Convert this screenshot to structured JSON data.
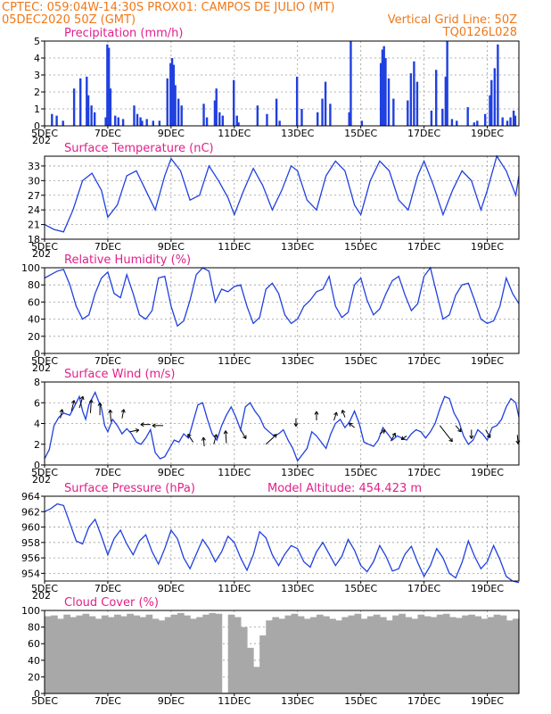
{
  "header": {
    "line1_left": "CPTEC:   059:04W-14:30S   PROX01: CAMPOS DE JULIO (MT)",
    "line2_left": "05DEC2020 50Z (GMT)",
    "line2_right": "Vertical Grid Line: 50Z",
    "line3_right": "TQ0126L028",
    "color": "#f07818"
  },
  "colors": {
    "title": "#e0208a",
    "series": "#2040e0",
    "cloud": "#a8a8a8",
    "grid": "#9a9a9a"
  },
  "x_axis": {
    "day_start": 5,
    "day_end": 20,
    "ticks": [
      {
        "day": 5,
        "label": "5DEC"
      },
      {
        "day": 7,
        "label": "7DEC"
      },
      {
        "day": 9,
        "label": "9DEC"
      },
      {
        "day": 11,
        "label": "11DEC"
      },
      {
        "day": 13,
        "label": "13DEC"
      },
      {
        "day": 15,
        "label": "15DEC"
      },
      {
        "day": 17,
        "label": "17DEC"
      },
      {
        "day": 19,
        "label": "19DEC"
      }
    ],
    "overlap_text": "202"
  },
  "chart_data": [
    {
      "type": "bar",
      "title": "Precipitation (mm/h)",
      "ylim": [
        0,
        5
      ],
      "yticks": [
        0,
        1,
        2,
        3,
        4,
        5
      ],
      "x": [
        5.2,
        5.35,
        5.55,
        5.9,
        6.1,
        6.3,
        6.35,
        6.45,
        6.55,
        6.9,
        6.95,
        7.0,
        7.05,
        7.2,
        7.3,
        7.45,
        7.8,
        7.9,
        8.0,
        8.05,
        8.2,
        8.4,
        8.6,
        8.85,
        8.95,
        9.0,
        9.05,
        9.1,
        9.2,
        9.3,
        10.0,
        10.1,
        10.35,
        10.4,
        10.5,
        10.6,
        10.95,
        11.05,
        11.1,
        11.7,
        12.0,
        12.3,
        12.4,
        12.95,
        13.1,
        13.6,
        13.75,
        13.85,
        14.0,
        14.6,
        14.65,
        15.0,
        15.6,
        15.65,
        15.7,
        15.75,
        15.85,
        16.0,
        16.45,
        16.55,
        16.65,
        16.75,
        17.2,
        17.35,
        17.55,
        17.65,
        17.7,
        17.85,
        18.0,
        18.35,
        18.55,
        18.65,
        18.9,
        19.05,
        19.1,
        19.2,
        19.3,
        19.45,
        19.6,
        19.7,
        19.8,
        19.85
      ],
      "values": [
        0.7,
        0.6,
        0.3,
        2.2,
        2.8,
        2.9,
        1.8,
        1.2,
        0.8,
        0.5,
        4.8,
        4.6,
        2.2,
        0.6,
        0.5,
        0.4,
        1.2,
        0.7,
        0.5,
        0.3,
        0.4,
        0.3,
        0.3,
        2.8,
        3.7,
        4.0,
        3.6,
        2.4,
        1.6,
        1.2,
        1.3,
        0.5,
        1.5,
        2.2,
        0.8,
        0.6,
        2.7,
        0.6,
        0.2,
        1.2,
        0.7,
        1.6,
        0.3,
        2.9,
        1.0,
        0.8,
        1.6,
        2.6,
        1.3,
        0.8,
        5.0,
        0.3,
        3.7,
        4.5,
        4.7,
        4.0,
        2.8,
        1.6,
        1.5,
        3.1,
        3.8,
        2.6,
        0.9,
        3.3,
        1.0,
        2.9,
        5.0,
        0.4,
        0.3,
        1.1,
        0.2,
        0.3,
        0.7,
        1.8,
        2.7,
        3.4,
        4.8,
        0.5,
        0.3,
        0.5,
        0.9,
        0.6
      ]
    },
    {
      "type": "line",
      "title": "Surface Temperature (nC)",
      "ylim": [
        18,
        35
      ],
      "yticks": [
        18,
        21,
        24,
        27,
        30,
        33
      ],
      "x": [
        5.0,
        5.3,
        5.6,
        5.9,
        6.2,
        6.5,
        6.8,
        7.0,
        7.3,
        7.6,
        7.9,
        8.2,
        8.5,
        8.8,
        9.0,
        9.3,
        9.6,
        9.9,
        10.2,
        10.5,
        10.8,
        11.0,
        11.3,
        11.6,
        11.9,
        12.2,
        12.5,
        12.8,
        13.0,
        13.3,
        13.6,
        13.9,
        14.2,
        14.5,
        14.8,
        15.0,
        15.3,
        15.6,
        15.9,
        16.2,
        16.5,
        16.8,
        17.0,
        17.3,
        17.6,
        17.9,
        18.2,
        18.5,
        18.8,
        19.0,
        19.3,
        19.6,
        19.9,
        20.0
      ],
      "values": [
        21,
        20,
        19.5,
        24,
        30,
        31.5,
        28,
        22.5,
        25,
        31,
        32,
        28,
        24,
        31,
        34.5,
        32,
        26,
        27,
        33,
        30,
        26.5,
        23,
        28,
        32.5,
        29,
        24,
        28,
        33,
        32,
        26,
        24,
        31,
        34,
        32,
        25,
        23,
        30,
        34,
        32,
        26,
        24,
        31,
        34,
        29,
        23,
        28,
        32,
        30,
        24,
        28,
        35,
        32,
        27,
        31
      ]
    },
    {
      "type": "line",
      "title": "Relative Humidity (%)",
      "ylim": [
        0,
        100
      ],
      "yticks": [
        0,
        20,
        40,
        60,
        80,
        100
      ],
      "x": [
        5.0,
        5.2,
        5.4,
        5.6,
        5.8,
        6.0,
        6.2,
        6.4,
        6.6,
        6.8,
        7.0,
        7.2,
        7.4,
        7.6,
        7.8,
        8.0,
        8.2,
        8.4,
        8.6,
        8.8,
        9.0,
        9.2,
        9.4,
        9.6,
        9.8,
        10.0,
        10.2,
        10.4,
        10.6,
        10.8,
        11.0,
        11.2,
        11.4,
        11.6,
        11.8,
        12.0,
        12.2,
        12.4,
        12.6,
        12.8,
        13.0,
        13.2,
        13.4,
        13.6,
        13.8,
        14.0,
        14.2,
        14.4,
        14.6,
        14.8,
        15.0,
        15.2,
        15.4,
        15.6,
        15.8,
        16.0,
        16.2,
        16.4,
        16.6,
        16.8,
        17.0,
        17.2,
        17.4,
        17.6,
        17.8,
        18.0,
        18.2,
        18.4,
        18.6,
        18.8,
        19.0,
        19.2,
        19.4,
        19.6,
        19.8,
        20.0
      ],
      "values": [
        88,
        92,
        96,
        98,
        80,
        55,
        40,
        45,
        70,
        88,
        95,
        70,
        65,
        92,
        70,
        45,
        40,
        50,
        88,
        90,
        55,
        32,
        38,
        62,
        92,
        100,
        96,
        60,
        75,
        72,
        78,
        80,
        55,
        35,
        42,
        75,
        82,
        70,
        45,
        35,
        40,
        55,
        62,
        72,
        75,
        90,
        55,
        42,
        48,
        80,
        88,
        62,
        45,
        52,
        70,
        85,
        90,
        68,
        50,
        58,
        90,
        100,
        70,
        40,
        45,
        68,
        80,
        82,
        62,
        40,
        35,
        38,
        55,
        88,
        70,
        58
      ]
    },
    {
      "type": "line",
      "title": "Surface Wind (m/s)",
      "ylim": [
        0,
        8
      ],
      "yticks": [
        0,
        2,
        4,
        6,
        8
      ],
      "x": [
        5.0,
        5.15,
        5.3,
        5.45,
        5.6,
        5.8,
        6.0,
        6.1,
        6.2,
        6.3,
        6.4,
        6.5,
        6.6,
        6.7,
        6.8,
        6.9,
        7.0,
        7.15,
        7.3,
        7.45,
        7.6,
        7.75,
        7.9,
        8.05,
        8.2,
        8.35,
        8.5,
        8.65,
        8.8,
        8.95,
        9.1,
        9.25,
        9.4,
        9.55,
        9.7,
        9.85,
        10.0,
        10.15,
        10.3,
        10.45,
        10.6,
        10.75,
        10.9,
        11.05,
        11.2,
        11.35,
        11.5,
        11.65,
        11.8,
        11.95,
        12.1,
        12.25,
        12.4,
        12.55,
        12.7,
        12.85,
        13.0,
        13.15,
        13.3,
        13.45,
        13.6,
        13.75,
        13.9,
        14.05,
        14.2,
        14.35,
        14.5,
        14.65,
        14.8,
        14.95,
        15.1,
        15.25,
        15.4,
        15.55,
        15.7,
        15.85,
        16.0,
        16.15,
        16.3,
        16.45,
        16.6,
        16.75,
        16.9,
        17.05,
        17.2,
        17.35,
        17.5,
        17.65,
        17.8,
        17.95,
        18.1,
        18.25,
        18.4,
        18.55,
        18.7,
        18.85,
        19.0,
        19.15,
        19.3,
        19.45,
        19.6,
        19.75,
        19.9,
        20.0
      ],
      "values": [
        0.6,
        1.5,
        3.8,
        4.6,
        5.0,
        4.8,
        6.0,
        6.6,
        5.2,
        4.4,
        5.8,
        6.4,
        7.0,
        6.2,
        5.5,
        3.8,
        3.2,
        4.4,
        3.8,
        3.0,
        3.5,
        3.0,
        2.2,
        2.0,
        2.6,
        3.4,
        1.2,
        0.6,
        0.8,
        1.6,
        2.4,
        2.2,
        3.0,
        2.6,
        4.2,
        5.8,
        6.0,
        4.4,
        3.0,
        2.4,
        3.8,
        4.8,
        5.6,
        4.6,
        3.4,
        5.6,
        6.0,
        5.2,
        4.6,
        3.6,
        3.2,
        2.8,
        3.0,
        3.4,
        2.4,
        1.6,
        0.4,
        1.0,
        1.6,
        3.2,
        2.8,
        2.2,
        1.6,
        3.0,
        4.0,
        4.4,
        3.6,
        4.2,
        5.2,
        4.0,
        2.2,
        2.0,
        1.8,
        2.4,
        3.6,
        3.0,
        2.4,
        2.8,
        2.6,
        2.4,
        3.0,
        3.4,
        3.2,
        2.6,
        3.2,
        4.0,
        5.4,
        6.6,
        6.4,
        5.0,
        4.2,
        2.8,
        2.0,
        2.4,
        3.4,
        3.0,
        2.4,
        3.6,
        3.8,
        4.4,
        5.6,
        6.4,
        6.0,
        4.6
      ],
      "vectors": [
        {
          "x": 5.5,
          "y": 4.5,
          "u": 0.2,
          "v": 1.0
        },
        {
          "x": 5.85,
          "y": 5.2,
          "u": 0.3,
          "v": 1.2
        },
        {
          "x": 6.1,
          "y": 5.5,
          "u": 0.4,
          "v": 1.3
        },
        {
          "x": 6.45,
          "y": 5.0,
          "u": 0.1,
          "v": 1.5
        },
        {
          "x": 6.75,
          "y": 4.8,
          "u": 0.0,
          "v": 1.4
        },
        {
          "x": 7.1,
          "y": 4.2,
          "u": -0.1,
          "v": 1.3
        },
        {
          "x": 7.45,
          "y": 4.5,
          "u": 0.2,
          "v": 1.0
        },
        {
          "x": 7.7,
          "y": 3.2,
          "u": 1.0,
          "v": 0.2
        },
        {
          "x": 8.35,
          "y": 3.9,
          "u": -1.1,
          "v": 0.0
        },
        {
          "x": 8.75,
          "y": 3.8,
          "u": -1.2,
          "v": 0.0
        },
        {
          "x": 9.7,
          "y": 2.2,
          "u": -0.6,
          "v": 0.9
        },
        {
          "x": 10.05,
          "y": 1.8,
          "u": -0.1,
          "v": 1.0
        },
        {
          "x": 10.35,
          "y": 2.0,
          "u": 0.3,
          "v": 1.1
        },
        {
          "x": 10.75,
          "y": 2.1,
          "u": -0.1,
          "v": 1.4
        },
        {
          "x": 11.2,
          "y": 3.4,
          "u": 0.6,
          "v": -1.0
        },
        {
          "x": 12.0,
          "y": 2.0,
          "u": 1.2,
          "v": 1.1
        },
        {
          "x": 12.95,
          "y": 4.5,
          "u": 0.0,
          "v": -0.9
        },
        {
          "x": 13.6,
          "y": 4.3,
          "u": 0.0,
          "v": 1.0
        },
        {
          "x": 14.15,
          "y": 4.3,
          "u": 0.3,
          "v": 0.9
        },
        {
          "x": 14.5,
          "y": 4.6,
          "u": -0.3,
          "v": 0.8
        },
        {
          "x": 14.8,
          "y": 3.6,
          "u": -0.6,
          "v": 0.5
        },
        {
          "x": 15.6,
          "y": 3.0,
          "u": 0.6,
          "v": 0.4
        },
        {
          "x": 15.95,
          "y": 2.3,
          "u": 0.5,
          "v": 0.9
        },
        {
          "x": 16.45,
          "y": 2.8,
          "u": -0.6,
          "v": -0.4
        },
        {
          "x": 17.5,
          "y": 3.8,
          "u": 1.4,
          "v": -1.8
        },
        {
          "x": 18.0,
          "y": 3.8,
          "u": 0.6,
          "v": -0.7
        },
        {
          "x": 18.5,
          "y": 3.4,
          "u": 0.0,
          "v": -1.0
        },
        {
          "x": 18.95,
          "y": 3.4,
          "u": 0.5,
          "v": -0.9
        },
        {
          "x": 19.95,
          "y": 2.9,
          "u": 0.1,
          "v": -1.0
        }
      ]
    },
    {
      "type": "line",
      "title": "Surface Pressure (hPa)",
      "annotation": "Model Altitude: 454.423 m",
      "ylim": [
        953,
        964
      ],
      "yticks": [
        954,
        956,
        958,
        960,
        962,
        964
      ],
      "x": [
        5.0,
        5.2,
        5.4,
        5.6,
        5.8,
        6.0,
        6.2,
        6.4,
        6.6,
        6.8,
        7.0,
        7.2,
        7.4,
        7.6,
        7.8,
        8.0,
        8.2,
        8.4,
        8.6,
        8.8,
        9.0,
        9.2,
        9.4,
        9.6,
        9.8,
        10.0,
        10.2,
        10.4,
        10.6,
        10.8,
        11.0,
        11.2,
        11.4,
        11.6,
        11.8,
        12.0,
        12.2,
        12.4,
        12.6,
        12.8,
        13.0,
        13.2,
        13.4,
        13.6,
        13.8,
        14.0,
        14.2,
        14.4,
        14.6,
        14.8,
        15.0,
        15.2,
        15.4,
        15.6,
        15.8,
        16.0,
        16.2,
        16.4,
        16.6,
        16.8,
        17.0,
        17.2,
        17.4,
        17.6,
        17.8,
        18.0,
        18.2,
        18.4,
        18.6,
        18.8,
        19.0,
        19.2,
        19.4,
        19.6,
        19.8,
        20.0
      ],
      "values": [
        962.0,
        962.4,
        963.0,
        962.8,
        960.5,
        958.2,
        957.8,
        960.0,
        961.0,
        958.8,
        956.4,
        958.5,
        959.6,
        957.8,
        956.4,
        958.2,
        959.0,
        956.8,
        955.2,
        957.2,
        959.6,
        958.5,
        956.0,
        954.6,
        956.5,
        958.4,
        957.2,
        955.5,
        956.8,
        958.8,
        958.0,
        956.0,
        954.4,
        956.4,
        959.4,
        958.6,
        956.4,
        955.0,
        956.5,
        957.6,
        957.2,
        955.5,
        954.8,
        956.8,
        958.0,
        956.5,
        955.0,
        956.2,
        958.4,
        957.0,
        955.0,
        954.2,
        955.5,
        957.6,
        956.2,
        954.3,
        954.6,
        956.5,
        957.5,
        955.4,
        953.6,
        955.0,
        957.2,
        956.0,
        954.0,
        953.4,
        955.4,
        958.2,
        956.2,
        954.6,
        955.5,
        957.6,
        955.8,
        953.6,
        953.0,
        952.8
      ]
    },
    {
      "type": "bar",
      "title": "Cloud Cover (%)",
      "ylim": [
        0,
        100
      ],
      "yticks": [
        0,
        20,
        40,
        60,
        80,
        100
      ],
      "x": [
        5.0,
        5.2,
        5.4,
        5.6,
        5.8,
        6.0,
        6.2,
        6.4,
        6.6,
        6.8,
        7.0,
        7.2,
        7.4,
        7.6,
        7.8,
        8.0,
        8.2,
        8.4,
        8.6,
        8.8,
        9.0,
        9.2,
        9.4,
        9.6,
        9.8,
        10.0,
        10.2,
        10.4,
        10.6,
        10.8,
        11.0,
        11.2,
        11.4,
        11.6,
        11.8,
        12.0,
        12.2,
        12.4,
        12.6,
        12.8,
        13.0,
        13.2,
        13.4,
        13.6,
        13.8,
        14.0,
        14.2,
        14.4,
        14.6,
        14.8,
        15.0,
        15.2,
        15.4,
        15.6,
        15.8,
        16.0,
        16.2,
        16.4,
        16.6,
        16.8,
        17.0,
        17.2,
        17.4,
        17.6,
        17.8,
        18.0,
        18.2,
        18.4,
        18.6,
        18.8,
        19.0,
        19.2,
        19.4,
        19.6,
        19.8
      ],
      "values": [
        93,
        94,
        90,
        95,
        92,
        94,
        96,
        93,
        90,
        94,
        92,
        95,
        93,
        96,
        94,
        92,
        95,
        90,
        88,
        92,
        95,
        97,
        94,
        90,
        92,
        95,
        97,
        96,
        1,
        95,
        92,
        80,
        55,
        32,
        70,
        88,
        92,
        90,
        94,
        96,
        93,
        90,
        92,
        95,
        93,
        90,
        88,
        92,
        94,
        96,
        90,
        93,
        95,
        92,
        88,
        94,
        96,
        92,
        90,
        95,
        93,
        92,
        95,
        96,
        92,
        91,
        94,
        95,
        93,
        90,
        92,
        95,
        94,
        88,
        90
      ],
      "bar_width_days": 0.2
    }
  ]
}
